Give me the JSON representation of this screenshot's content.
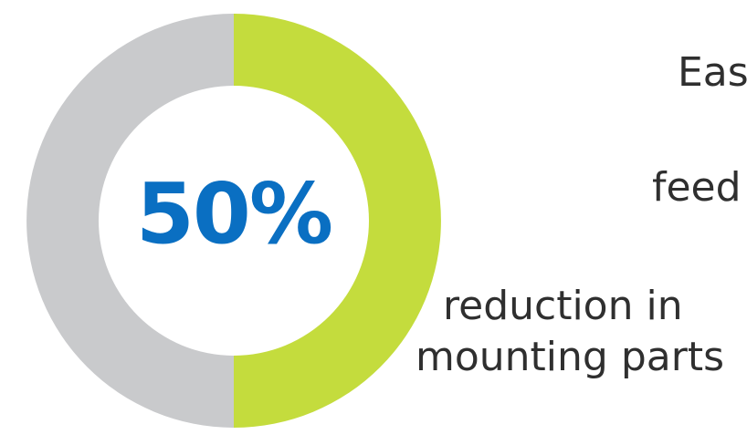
{
  "chart_data": {
    "type": "pie",
    "values": [
      50,
      50
    ],
    "colors": [
      "#c4dc3d",
      "#c9cacc"
    ],
    "center_label": "50%",
    "annotations": [
      "Easy",
      "feed",
      "reduction in",
      "mounting parts"
    ]
  },
  "labels": {
    "easy": "Eas",
    "feed": "feed",
    "reduction": "reduction in",
    "mounting": "mounting parts"
  },
  "colors": {
    "accent_green": "#c4dc3d",
    "neutral_gray": "#c9cacc",
    "value_blue": "#0a6fc2",
    "text": "#2f2f2f"
  }
}
